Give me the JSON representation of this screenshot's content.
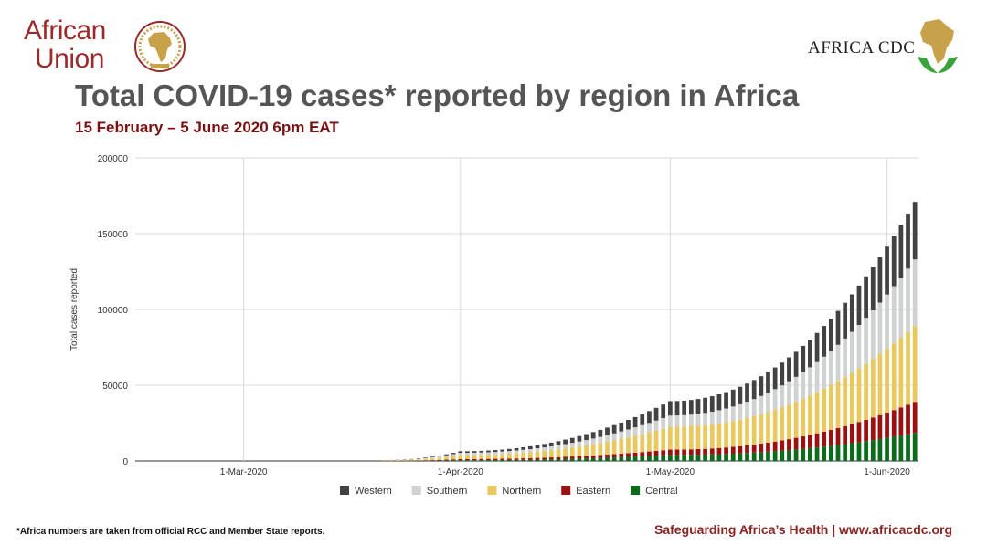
{
  "header": {
    "au_logo_line1": "African",
    "au_logo_line2": "Union",
    "cdc_logo_text": "AFRICA CDC",
    "title": "Total COVID-19 cases* reported by region in Africa",
    "subtitle": "15 February – 5 June 2020 6pm EAT"
  },
  "footer": {
    "footnote": "*Africa numbers are taken from official RCC and Member State reports.",
    "tagline": "Safeguarding Africa’s Health | www.africacdc.org"
  },
  "colors": {
    "Western": "#424242",
    "Southern": "#cfd2d0",
    "Northern": "#e9c95e",
    "Eastern": "#9b1010",
    "Central": "#0b6b1a",
    "au_red": "#9b2a2a",
    "gold": "#c8a24a"
  },
  "chart_data": {
    "type": "bar",
    "stacked": true,
    "title": "Total COVID-19 cases* reported by region in Africa",
    "xlabel": "",
    "ylabel": "Total cases reported",
    "ylim": [
      0,
      200000
    ],
    "yticks": [
      0,
      50000,
      100000,
      150000,
      200000
    ],
    "ytick_labels": [
      "0",
      "50000",
      "100000",
      "150000",
      "200000"
    ],
    "xtick_labels": [
      {
        "label": "1-Mar-2020",
        "day_index": 15
      },
      {
        "label": "1-Apr-2020",
        "day_index": 46
      },
      {
        "label": "1-May-2020",
        "day_index": 76
      },
      {
        "label": "1-Jun-2020",
        "day_index": 107
      }
    ],
    "period": {
      "start": "2020-02-15",
      "end": "2020-06-05",
      "days": 112
    },
    "legend_position": "bottom",
    "stack_order": [
      "Central",
      "Eastern",
      "Northern",
      "Southern",
      "Western"
    ],
    "legend_order": [
      "Western",
      "Southern",
      "Northern",
      "Eastern",
      "Central"
    ],
    "growth_exponent": 2.1,
    "anchors": [
      {
        "day_index": 35,
        "Central": 0,
        "Eastern": 30,
        "Northern": 300,
        "Southern": 150,
        "Western": 120
      },
      {
        "day_index": 46,
        "Central": 500,
        "Eastern": 800,
        "Northern": 2600,
        "Southern": 1500,
        "Western": 1000
      },
      {
        "day_index": 76,
        "Central": 4000,
        "Eastern": 3500,
        "Northern": 15000,
        "Southern": 7500,
        "Western": 9500
      },
      {
        "day_index": 111,
        "Central": 18500,
        "Eastern": 20500,
        "Northern": 50000,
        "Southern": 44000,
        "Western": 38000
      }
    ]
  }
}
